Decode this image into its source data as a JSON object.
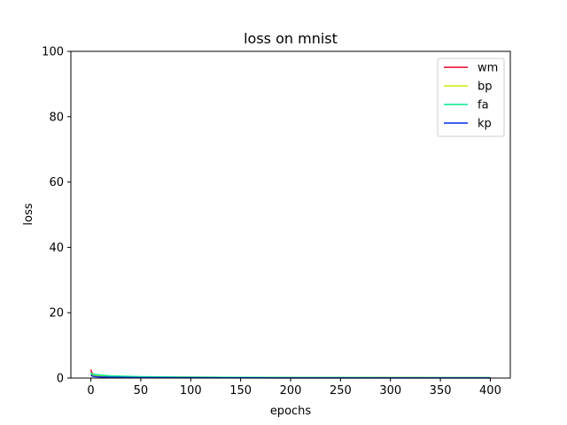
{
  "chart_data": {
    "type": "line",
    "title": "loss on mnist",
    "xlabel": "epochs",
    "ylabel": "loss",
    "xlim": [
      -20,
      420
    ],
    "ylim": [
      0,
      100
    ],
    "xticks": [
      0,
      50,
      100,
      150,
      200,
      250,
      300,
      350,
      400
    ],
    "yticks": [
      0,
      20,
      40,
      60,
      80,
      100
    ],
    "grid": false,
    "legend_position": "top-right",
    "series": [
      {
        "name": "wm",
        "color": "#e8002a",
        "x": [
          0,
          1,
          2,
          5,
          10,
          20,
          50,
          100,
          200,
          300,
          400
        ],
        "y": [
          2.6,
          1.6,
          1.2,
          0.9,
          0.7,
          0.5,
          0.35,
          0.25,
          0.15,
          0.12,
          0.1
        ]
      },
      {
        "name": "bp",
        "color": "#c8f000",
        "x": [
          0,
          1,
          2,
          5,
          10,
          20,
          50,
          100,
          200,
          300,
          400
        ],
        "y": [
          1.3,
          1.0,
          0.9,
          0.8,
          0.7,
          0.55,
          0.35,
          0.25,
          0.15,
          0.12,
          0.1
        ]
      },
      {
        "name": "fa",
        "color": "#00e88a",
        "x": [
          0,
          1,
          2,
          5,
          10,
          20,
          50,
          100,
          200,
          300,
          400
        ],
        "y": [
          1.6,
          1.3,
          1.2,
          1.05,
          0.9,
          0.65,
          0.4,
          0.28,
          0.18,
          0.14,
          0.12
        ]
      },
      {
        "name": "kp",
        "color": "#0028e8",
        "x": [
          0,
          1,
          2,
          5,
          10,
          20,
          50,
          100,
          200,
          300,
          400
        ],
        "y": [
          1.0,
          0.7,
          0.55,
          0.45,
          0.35,
          0.25,
          0.15,
          0.1,
          0.05,
          0.04,
          0.03
        ]
      }
    ]
  }
}
